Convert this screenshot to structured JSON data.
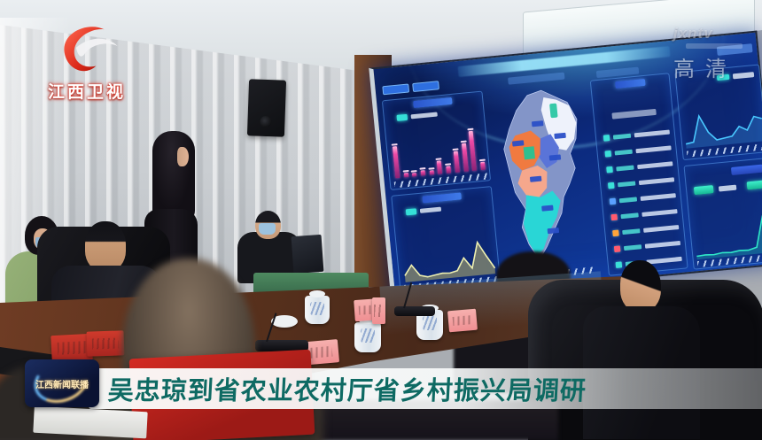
{
  "broadcast": {
    "channel_logo": "江西卫视",
    "watermark": "jxntv",
    "quality_badge": "高清",
    "program_badge": "江西新闻联播",
    "caption": "吴忠琼到省农业农村厅省乡村振兴局调研"
  },
  "colors": {
    "caption_text": "#0e6a63",
    "screen_bg_top": "#081540",
    "screen_bg_bottom": "#1241a6",
    "accent_cyan": "#35e0d8",
    "bar_pink": "#ee4aa6",
    "map_orange": "#f07a40",
    "map_salmon": "#f5a78c",
    "map_cyan": "#29d6d6",
    "map_green": "#2fbf8f",
    "map_white": "#eef2fb"
  },
  "screen": {
    "bar_chart": {
      "values": [
        62,
        9,
        7,
        11,
        9,
        26,
        13,
        42,
        55,
        78,
        15
      ]
    },
    "area_chart": {
      "values": [
        12,
        30,
        10,
        6,
        8,
        10,
        9,
        12,
        34,
        14,
        60,
        34,
        10
      ]
    },
    "line_chart": {
      "values": [
        8,
        10,
        55,
        25,
        10,
        12,
        14,
        30,
        22,
        45,
        40
      ]
    },
    "trend_chart": {
      "values": [
        6,
        7,
        6,
        8,
        7,
        9,
        8,
        12,
        68,
        88
      ]
    },
    "list_icon_colors": [
      "#3ae0d8",
      "#3ae0d8",
      "#3ae0d8",
      "#3ae0d8",
      "#5aa0ff",
      "#ff5a6e",
      "#ffa43a",
      "#ff5a6e",
      "#3ae0d8"
    ]
  }
}
